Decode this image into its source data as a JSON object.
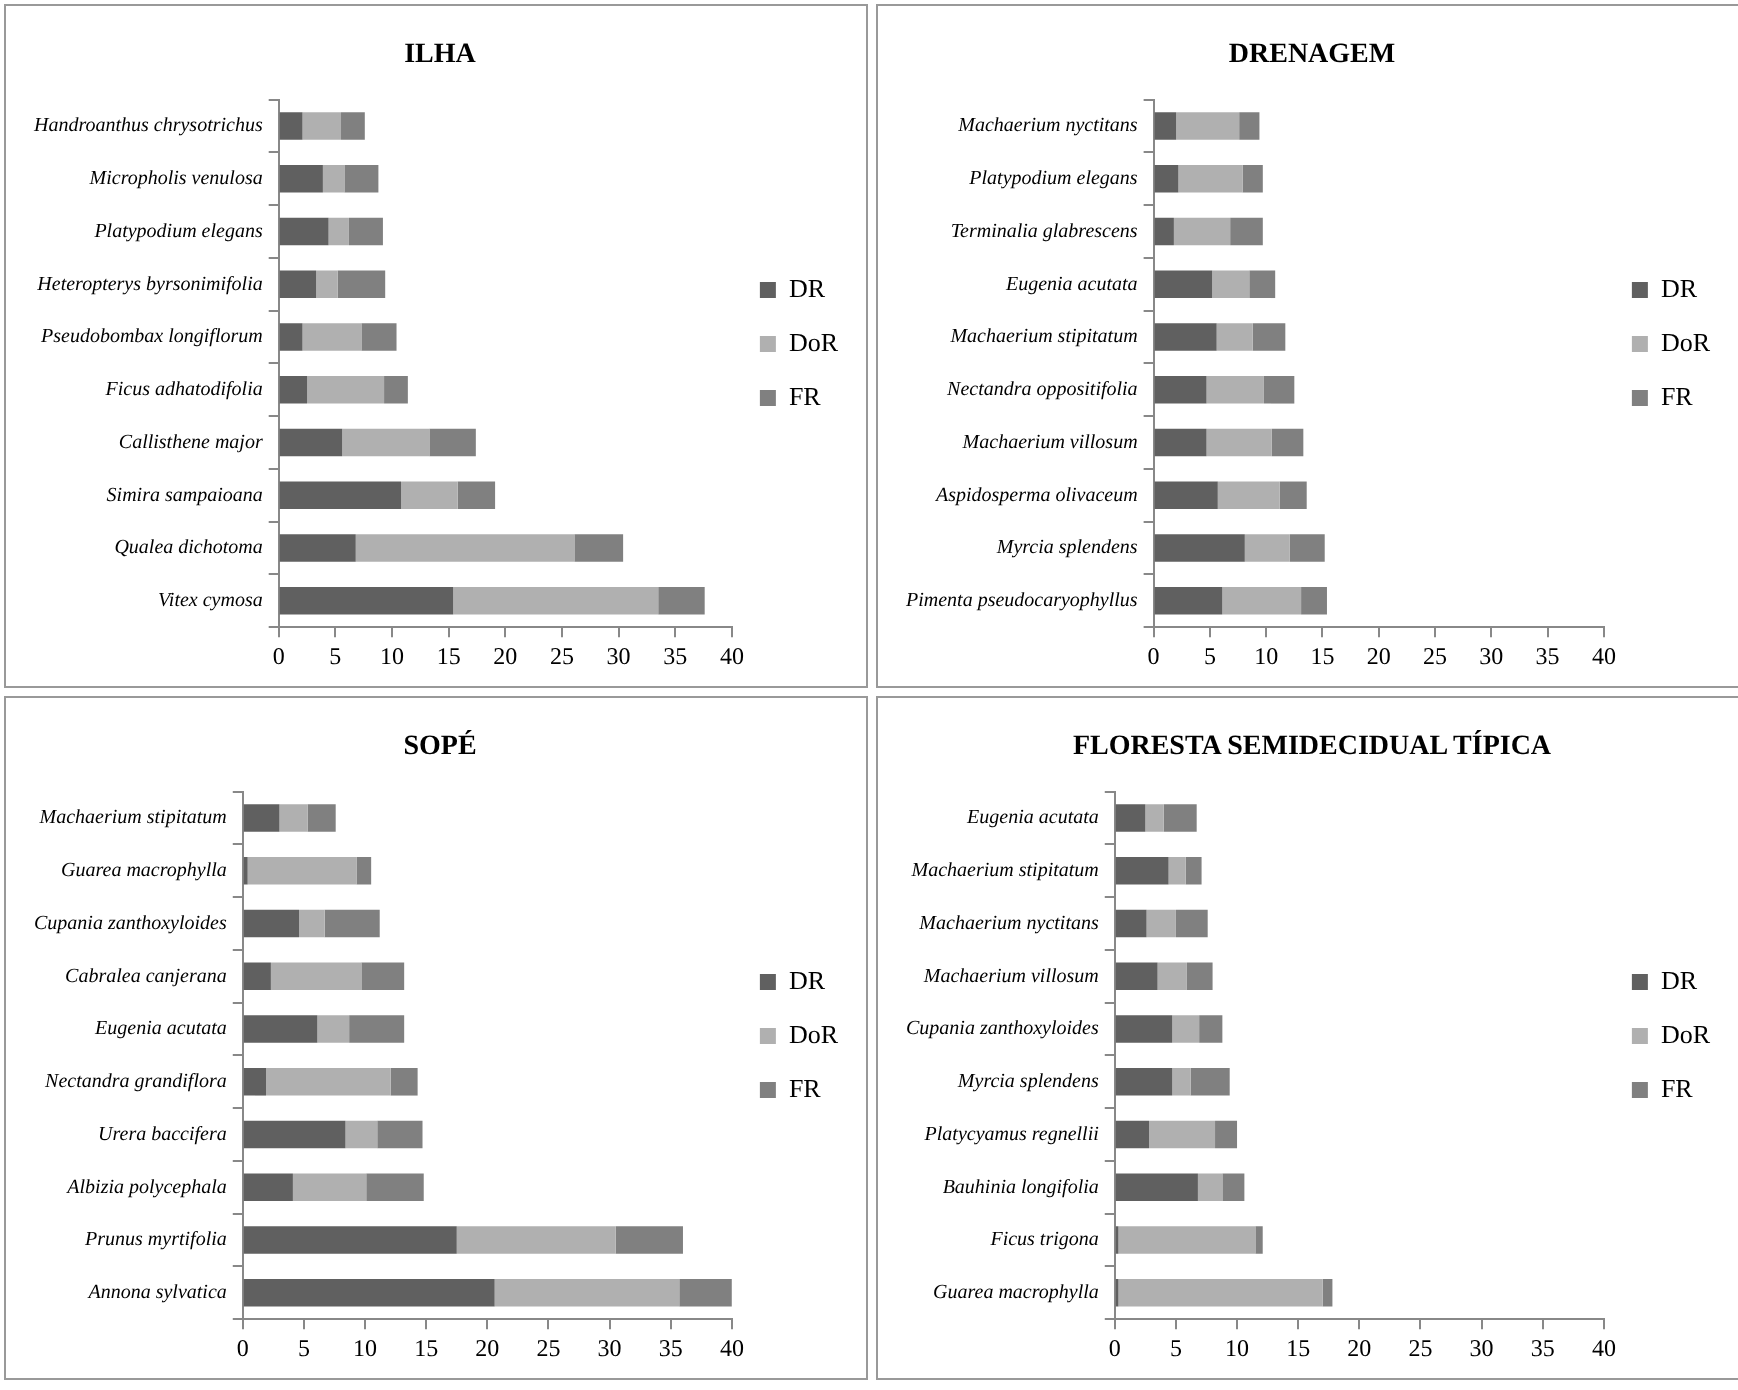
{
  "chart_data": [
    {
      "type": "bar",
      "title": "ILHA",
      "orientation": "horizontal",
      "stacked": true,
      "legend": "right",
      "categories": [
        "Handroanthus chrysotrichus",
        "Micropholis venulosa",
        "Platypodium elegans",
        "Heteropterys byrsonimifolia",
        "Pseudobombax longiflorum",
        "Ficus adhatodifolia",
        "Callisthene major",
        "Simira sampaioana",
        "Qualea dichotoma",
        "Vitex cymosa"
      ],
      "series": [
        {
          "name": "DR",
          "color": "#606060",
          "values": [
            2.1,
            3.9,
            4.4,
            3.3,
            2.1,
            2.5,
            5.6,
            10.8,
            6.8,
            15.4
          ]
        },
        {
          "name": "DoR",
          "color": "#b0b0b0",
          "values": [
            3.4,
            1.9,
            1.8,
            1.9,
            5.2,
            6.8,
            7.7,
            5.0,
            19.3,
            18.1
          ]
        },
        {
          "name": "FR",
          "color": "#808080",
          "values": [
            2.1,
            3.0,
            3.0,
            4.2,
            3.1,
            2.1,
            4.1,
            3.3,
            4.3,
            4.1
          ]
        }
      ],
      "xlim": [
        0,
        40
      ],
      "xticks": [
        0,
        5,
        10,
        15,
        20,
        25,
        30,
        35,
        40
      ]
    },
    {
      "type": "bar",
      "title": "DRENAGEM",
      "orientation": "horizontal",
      "stacked": true,
      "legend": "right",
      "categories": [
        "Machaerium nyctitans",
        "Platypodium elegans",
        "Terminalia glabrescens",
        "Eugenia acutata",
        "Machaerium stipitatum",
        "Nectandra oppositifolia",
        "Machaerium villosum",
        "Aspidosperma olivaceum",
        "Myrcia splendens",
        "Pimenta pseudocaryophyllus"
      ],
      "series": [
        {
          "name": "DR",
          "color": "#606060",
          "values": [
            2.0,
            2.2,
            1.8,
            5.2,
            5.6,
            4.7,
            4.7,
            5.7,
            8.1,
            6.1
          ]
        },
        {
          "name": "DoR",
          "color": "#b0b0b0",
          "values": [
            5.6,
            5.7,
            5.0,
            3.3,
            3.2,
            5.1,
            5.8,
            5.5,
            4.0,
            7.0
          ]
        },
        {
          "name": "FR",
          "color": "#808080",
          "values": [
            1.8,
            1.8,
            2.9,
            2.3,
            2.9,
            2.7,
            2.8,
            2.4,
            3.1,
            2.3
          ]
        }
      ],
      "xlim": [
        0,
        40
      ],
      "xticks": [
        0,
        5,
        10,
        15,
        20,
        25,
        30,
        35,
        40
      ]
    },
    {
      "type": "bar",
      "title": "SOPÉ",
      "orientation": "horizontal",
      "stacked": true,
      "legend": "right",
      "categories": [
        "Machaerium stipitatum",
        "Guarea macrophylla",
        "Cupania zanthoxyloides",
        "Cabralea canjerana",
        "Eugenia acutata",
        "Nectandra grandiflora",
        "Urera baccifera",
        "Albizia polycephala",
        "Prunus myrtifolia",
        "Annona sylvatica"
      ],
      "series": [
        {
          "name": "DR",
          "color": "#606060",
          "values": [
            3.0,
            0.4,
            4.6,
            2.3,
            6.1,
            1.9,
            8.4,
            4.1,
            17.5,
            20.6
          ]
        },
        {
          "name": "DoR",
          "color": "#b0b0b0",
          "values": [
            2.3,
            8.9,
            2.1,
            7.4,
            2.6,
            10.2,
            2.6,
            6.0,
            13.0,
            15.1
          ]
        },
        {
          "name": "FR",
          "color": "#808080",
          "values": [
            2.3,
            1.2,
            4.5,
            3.5,
            4.5,
            2.2,
            3.7,
            4.7,
            5.5,
            4.3
          ]
        }
      ],
      "xlim": [
        0,
        40
      ],
      "xticks": [
        0,
        5,
        10,
        15,
        20,
        25,
        30,
        35,
        40
      ]
    },
    {
      "type": "bar",
      "title": "FLORESTA SEMIDECIDUAL TÍPICA",
      "orientation": "horizontal",
      "stacked": true,
      "legend": "right",
      "categories": [
        "Eugenia acutata",
        "Machaerium stipitatum",
        "Machaerium nyctitans",
        "Machaerium villosum",
        "Cupania zanthoxyloides",
        "Myrcia splendens",
        "Platycyamus regnellii",
        "Bauhinia longifolia",
        "Ficus trigona",
        "Guarea macrophylla"
      ],
      "series": [
        {
          "name": "DR",
          "color": "#606060",
          "values": [
            2.5,
            4.4,
            2.6,
            3.5,
            4.7,
            4.7,
            2.8,
            6.8,
            0.3,
            0.3
          ]
        },
        {
          "name": "DoR",
          "color": "#b0b0b0",
          "values": [
            1.5,
            1.4,
            2.4,
            2.4,
            2.2,
            1.5,
            5.4,
            2.0,
            11.2,
            16.7
          ]
        },
        {
          "name": "FR",
          "color": "#808080",
          "values": [
            2.7,
            1.3,
            2.6,
            2.1,
            1.9,
            3.2,
            1.8,
            1.8,
            0.6,
            0.8
          ]
        }
      ],
      "xlim": [
        0,
        40
      ],
      "xticks": [
        0,
        5,
        10,
        15,
        20,
        25,
        30,
        35,
        40
      ]
    }
  ]
}
